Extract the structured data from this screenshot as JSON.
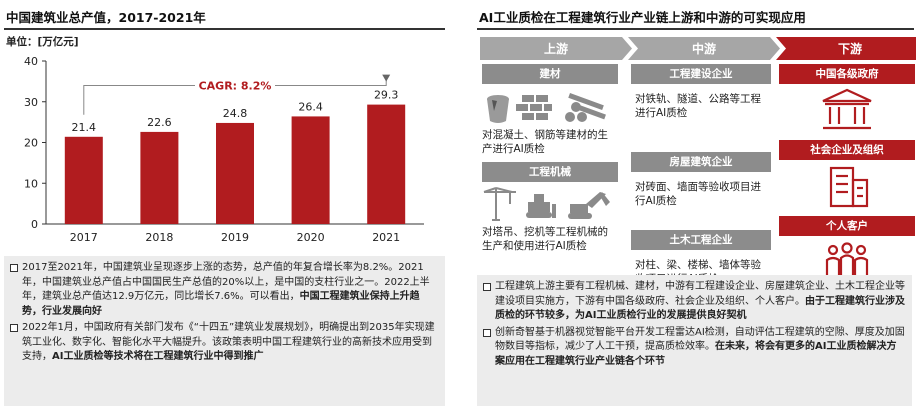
{
  "left": {
    "title": "中国建筑业总产值，2017-2021年",
    "unit_label": "单位：[万亿元]"
  },
  "chart_data": {
    "type": "bar",
    "categories": [
      "2017",
      "2018",
      "2019",
      "2020",
      "2021"
    ],
    "values": [
      21.4,
      22.6,
      24.8,
      26.4,
      29.3
    ],
    "value_labels": [
      "21.4",
      "22.6",
      "24.8",
      "26.4",
      "29.3"
    ],
    "ylim": [
      0,
      40
    ],
    "yticks": [
      "0",
      "10",
      "20",
      "30",
      "40"
    ],
    "annotation": "CAGR: 8.2%",
    "bar_color": "#b11c1f",
    "grid": false
  },
  "left_notes": [
    {
      "text": "2017至2021年，中国建筑业呈现逐步上涨的态势，总产值的年复合增长率为8.2%。2021年，中国建筑业总产值占中国国民生产总值的20%以上，是中国的支柱行业之一。2022上半年，建筑业总产值达12.9万亿元，同比增长7.6%。可以看出，",
      "bold": "中国工程建筑业保持上升趋势，行业发展向好"
    },
    {
      "text": "2022年1月，中国政府有关部门发布《“十四五”建筑业发展规划》，明确提出到2035年实现建筑工业化、数字化、智能化水平大幅提升。该政策表明中国工程建筑行业的高新技术应用受到支持，",
      "bold": "AI工业质检等技术将在工程建筑行业中得到推广"
    }
  ],
  "right": {
    "title": "AI工业质检在工程建筑行业产业链上游和中游的可实现应用",
    "stages": [
      "上游",
      "中游",
      "下游"
    ],
    "upstream": {
      "cat1": "建材",
      "cat1_text": "对混凝土、钢筋等建材的生产进行AI质检",
      "cat2": "工程机械",
      "cat2_text": "对塔吊、挖机等工程机械的生产和使用进行AI质检"
    },
    "midstream": [
      {
        "label": "工程建设企业",
        "text": "对铁轨、隧道、公路等工程进行AI质检"
      },
      {
        "label": "房屋建筑企业",
        "text": "对砖面、墙面等验收项目进行AI质检"
      },
      {
        "label": "土木工程企业",
        "text": "对柱、梁、楼梯、墙体等验收项目进行AI质检"
      }
    ],
    "downstream": [
      "中国各级政府",
      "社会企业及组织",
      "个人客户"
    ]
  },
  "right_notes": [
    {
      "text": "工程建筑上游主要有工程机械、建材，中游有工程建设企业、房屋建筑企业、土木工程企业等建设项目实施方，下游有中国各级政府、社会企业及组织、个人客户。",
      "bold": "由于工程建筑行业涉及质检的环节较多，为AI工业质检行业的发展提供良好契机"
    },
    {
      "text": "创新奇智基于机器视觉智能平台开发工程雷达AI检测，自动评估工程建筑的空隙、厚度及加固物数目等指标，减少了人工干预，提高质检效率。",
      "bold": "在未来，将会有更多的AI工业质检解决方案应用在工程建筑行业产业链各个环节"
    }
  ],
  "colors": {
    "accent_red": "#b11c1f",
    "stage_gray": "#a6a6a6",
    "bar_gray": "#8c8c8c",
    "note_bg": "#ececec"
  }
}
